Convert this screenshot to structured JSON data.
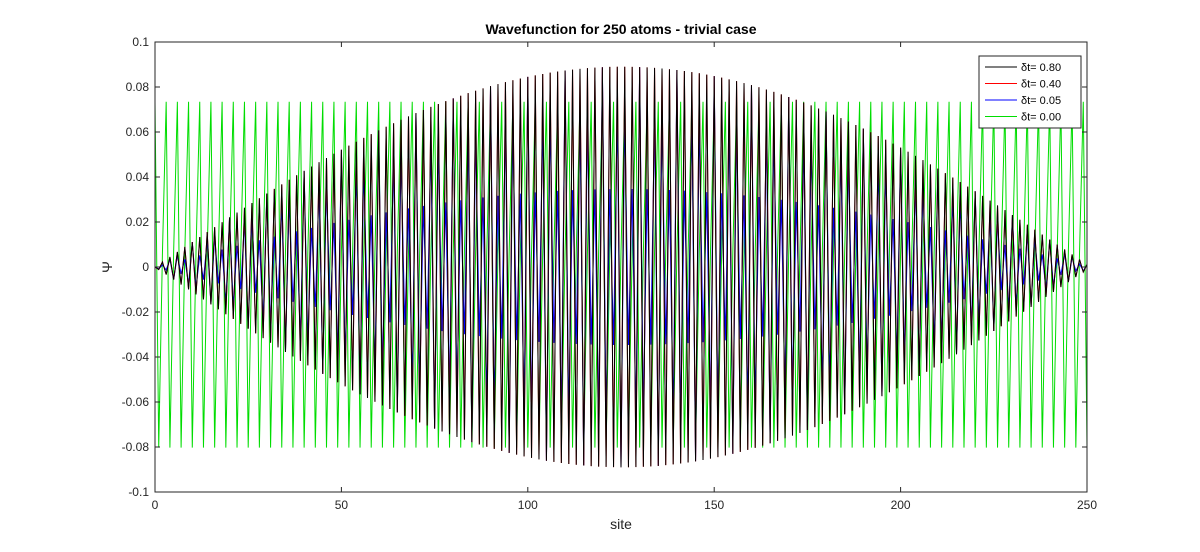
{
  "chart_data": {
    "type": "line",
    "title": "Wavefunction for 250 atoms - trivial case",
    "xlabel": "site",
    "ylabel": "Ψ",
    "xlim": [
      0,
      250
    ],
    "ylim": [
      -0.1,
      0.1
    ],
    "x_ticks": [
      "0",
      "50",
      "100",
      "150",
      "200",
      "250"
    ],
    "y_ticks": [
      "0.1",
      "0.08",
      "0.06",
      "0.04",
      "0.02",
      "0",
      "-0.02",
      "-0.04",
      "-0.06",
      "-0.08",
      "-0.1"
    ],
    "x_tick_values": [
      0,
      50,
      100,
      150,
      200,
      250
    ],
    "y_tick_values": [
      0.1,
      0.08,
      0.06,
      0.04,
      0.02,
      0,
      -0.02,
      -0.04,
      -0.06,
      -0.08,
      -0.1
    ],
    "grid": false,
    "legend_position": "top-right",
    "series": [
      {
        "name": "δt= 0.80",
        "color": "#000000",
        "n_sites": 250,
        "amplitude": 0.089,
        "envelope": "sine",
        "pattern": "alternating"
      },
      {
        "name": "δt= 0.40",
        "color": "#ff0000",
        "n_sites": 250,
        "amplitude": 0.089,
        "envelope": "sine",
        "pattern": "alternating"
      },
      {
        "name": "δt= 0.05",
        "color": "#0000ff",
        "n_sites": 250,
        "amplitude": 0.089,
        "envelope": "sine",
        "pattern": "alternating-beat"
      },
      {
        "name": "δt= 0.00",
        "color": "#00dd00",
        "n_sites": 250,
        "amplitude": 0.089,
        "envelope": "flat",
        "pattern": "period-3-oscillation"
      }
    ]
  }
}
